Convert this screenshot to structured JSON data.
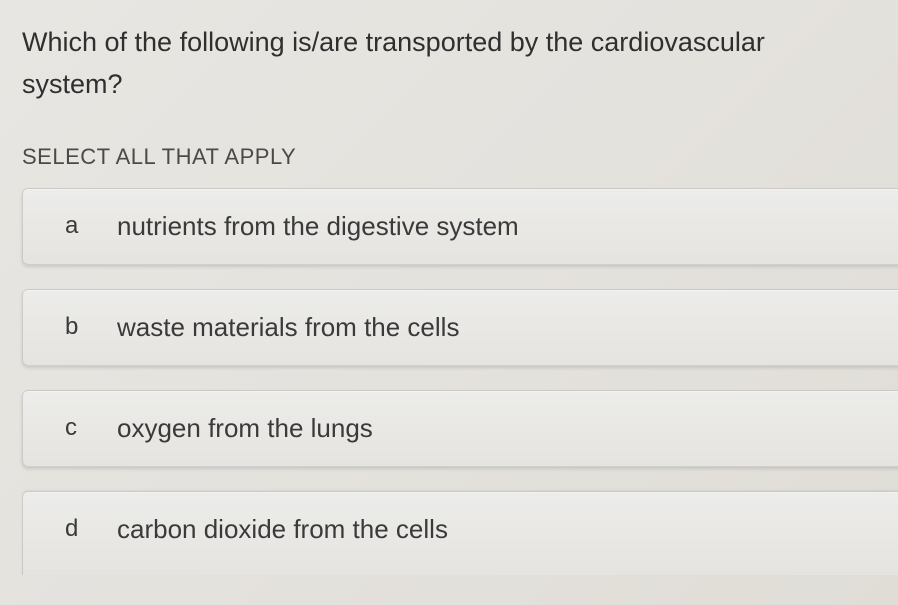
{
  "question": "Which of the following is/are transported by the cardiovascular system?",
  "instruction": "SELECT ALL THAT APPLY",
  "options": [
    {
      "letter": "a",
      "text": "nutrients from the digestive system"
    },
    {
      "letter": "b",
      "text": "waste materials from the cells"
    },
    {
      "letter": "c",
      "text": "oxygen from the lungs"
    },
    {
      "letter": "d",
      "text": "carbon dioxide from the cells"
    }
  ],
  "colors": {
    "background": "#e5e3de",
    "text": "#3a3a3a",
    "option_bg": "#ebeae7",
    "border": "#c8c6c1"
  },
  "typography": {
    "question_fontsize": 27,
    "instruction_fontsize": 22,
    "option_letter_fontsize": 24,
    "option_text_fontsize": 26
  }
}
